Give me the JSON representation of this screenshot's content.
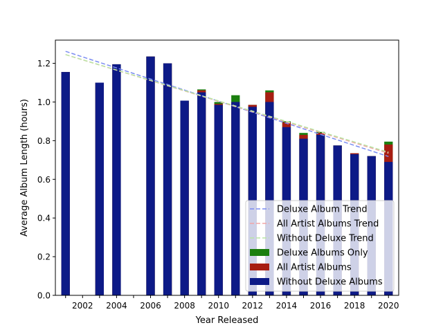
{
  "chart_data": {
    "type": "bar",
    "xlabel": "Year Released",
    "ylabel": "Average Album Length (hours)",
    "xlim": [
      2000.4,
      2020.6
    ],
    "ylim": [
      0.0,
      1.32
    ],
    "x_ticks": [
      2002,
      2004,
      2006,
      2008,
      2010,
      2012,
      2014,
      2016,
      2018,
      2020
    ],
    "y_ticks": [
      0.0,
      0.2,
      0.4,
      0.6,
      0.8,
      1.0,
      1.2
    ],
    "grid": false,
    "legend_position": "lower right",
    "bar_width": 0.5,
    "series": [
      {
        "name": "Without Deluxe Albums",
        "color": "#0d1a87",
        "x": [
          2001,
          2003,
          2004,
          2006,
          2007,
          2008,
          2009,
          2010,
          2011,
          2012,
          2013,
          2014,
          2015,
          2016,
          2017,
          2018,
          2019,
          2020
        ],
        "values": [
          1.155,
          1.1,
          1.195,
          1.235,
          1.2,
          1.007,
          1.05,
          0.985,
          1.0,
          0.975,
          1.0,
          0.87,
          0.81,
          0.83,
          0.775,
          0.73,
          0.72,
          0.69
        ]
      },
      {
        "name": "All Artist Albums",
        "color": "#a71d12",
        "x": [
          2001,
          2003,
          2004,
          2006,
          2007,
          2008,
          2009,
          2010,
          2011,
          2012,
          2013,
          2014,
          2015,
          2016,
          2017,
          2018,
          2019,
          2020
        ],
        "values": [
          1.155,
          1.1,
          1.195,
          1.235,
          1.2,
          1.007,
          1.06,
          0.99,
          1.0,
          0.985,
          1.05,
          0.895,
          0.83,
          0.84,
          0.775,
          0.735,
          0.72,
          0.78
        ]
      },
      {
        "name": "Deluxe Albums Only",
        "color": "#1b7f0f",
        "x": [
          2001,
          2003,
          2004,
          2006,
          2007,
          2008,
          2009,
          2010,
          2011,
          2012,
          2013,
          2014,
          2015,
          2016,
          2017,
          2018,
          2019,
          2020
        ],
        "values": [
          1.155,
          1.1,
          1.195,
          1.235,
          1.2,
          1.007,
          1.065,
          1.0,
          1.035,
          0.985,
          1.06,
          0.9,
          0.84,
          0.845,
          0.775,
          0.735,
          0.72,
          0.795
        ]
      }
    ],
    "trends": [
      {
        "name": "Deluxe Album Trend",
        "color": "#7b8cf2",
        "x": [
          2001,
          2020
        ],
        "y": [
          1.262,
          0.718
        ]
      },
      {
        "name": "All Artist Albums Trend",
        "color": "#f2a6a6",
        "x": [
          2001,
          2020
        ],
        "y": [
          1.245,
          0.735
        ]
      },
      {
        "name": "Without Deluxe Trend",
        "color": "#b9e6a4",
        "x": [
          2001,
          2020
        ],
        "y": [
          1.245,
          0.74
        ]
      }
    ],
    "legend": [
      {
        "label": "Deluxe Album Trend",
        "kind": "line",
        "color": "#7b8cf2"
      },
      {
        "label": "All Artist Albums Trend",
        "kind": "line",
        "color": "#f2a6a6"
      },
      {
        "label": "Without Deluxe Trend",
        "kind": "line",
        "color": "#b9e6a4"
      },
      {
        "label": "Deluxe Albums Only",
        "kind": "patch",
        "color": "#1b7f0f"
      },
      {
        "label": "All Artist Albums",
        "kind": "patch",
        "color": "#a71d12"
      },
      {
        "label": "Without Deluxe Albums",
        "kind": "patch",
        "color": "#0d1a87"
      }
    ]
  }
}
